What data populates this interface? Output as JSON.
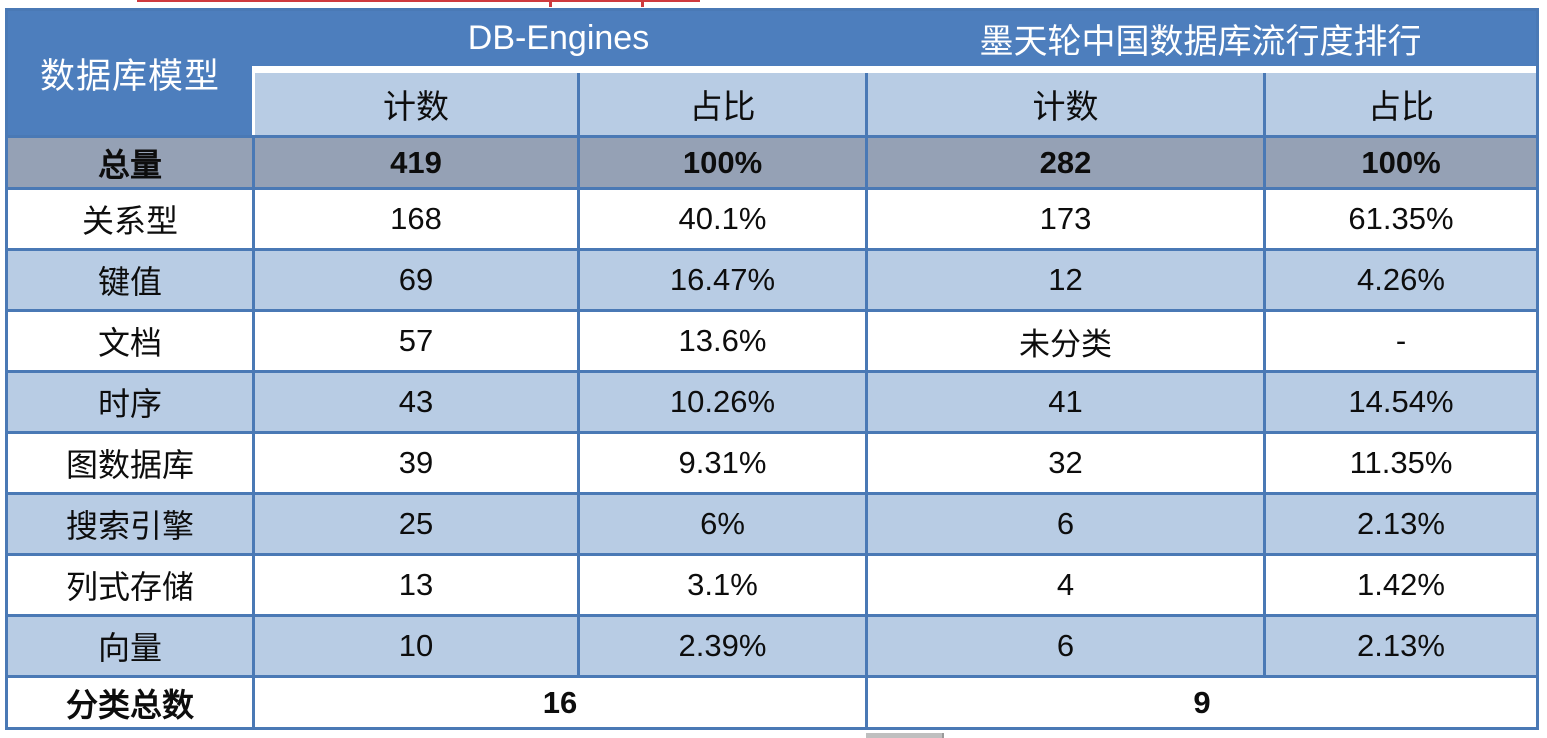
{
  "colors": {
    "header_blue": "#4d7ebd",
    "band_light": "#b8cce4",
    "band_total": "#95a1b5",
    "border_blue": "#4a79b5",
    "annotation_red": "#cf3a3e",
    "artifact_gray": "#bfbfbf"
  },
  "chart_data": {
    "type": "table",
    "corner_header": "数据库模型",
    "column_groups": [
      {
        "label": "DB-Engines",
        "columns": [
          "计数",
          "占比"
        ]
      },
      {
        "label": "墨天轮中国数据库流行度排行",
        "columns": [
          "计数",
          "占比"
        ]
      }
    ],
    "rows": [
      {
        "label": "总量",
        "values": [
          "419",
          "100%",
          "282",
          "100%"
        ],
        "emphasis": true
      },
      {
        "label": "关系型",
        "values": [
          "168",
          "40.1%",
          "173",
          "61.35%"
        ]
      },
      {
        "label": "键值",
        "values": [
          "69",
          "16.47%",
          "12",
          "4.26%"
        ]
      },
      {
        "label": "文档",
        "values": [
          "57",
          "13.6%",
          "未分类",
          "-"
        ]
      },
      {
        "label": "时序",
        "values": [
          "43",
          "10.26%",
          "41",
          "14.54%"
        ]
      },
      {
        "label": "图数据库",
        "values": [
          "39",
          "9.31%",
          "32",
          "11.35%"
        ]
      },
      {
        "label": "搜索引擎",
        "values": [
          "25",
          "6%",
          "6",
          "2.13%"
        ]
      },
      {
        "label": "列式存储",
        "values": [
          "13",
          "3.1%",
          "4",
          "1.42%"
        ]
      },
      {
        "label": "向量",
        "values": [
          "10",
          "2.39%",
          "6",
          "2.13%"
        ]
      }
    ],
    "footer": {
      "label": "分类总数",
      "values": [
        "16",
        "9"
      ]
    }
  }
}
